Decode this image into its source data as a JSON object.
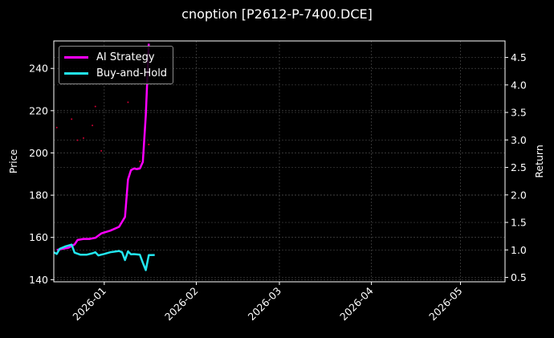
{
  "chart_data": {
    "type": "line",
    "title": "cnoption [P2612-P-7400.DCE]",
    "left_axis": {
      "label": "Price",
      "ylim": [
        139,
        253
      ],
      "ticks": [
        140,
        160,
        180,
        200,
        220,
        240
      ]
    },
    "right_axis": {
      "label": "Return",
      "ylim": [
        0.42,
        4.8
      ],
      "ticks": [
        0.5,
        1.0,
        1.5,
        2.0,
        2.5,
        3.0,
        3.5,
        4.0,
        4.5
      ]
    },
    "x_axis": {
      "type": "date",
      "range": [
        "2025-12-15",
        "2026-05-16"
      ],
      "ticks": [
        "2026-01",
        "2026-02",
        "2026-03",
        "2026-04",
        "2026-05"
      ]
    },
    "grid": true,
    "legend_position": "top-left",
    "series": [
      {
        "name": "AI Strategy",
        "color": "#ff00ff",
        "axis": "right",
        "points": [
          [
            "2025-12-16",
            1.0
          ],
          [
            "2025-12-18",
            1.02
          ],
          [
            "2025-12-20",
            1.04
          ],
          [
            "2025-12-22",
            1.1
          ],
          [
            "2025-12-23",
            1.18
          ],
          [
            "2025-12-25",
            1.2
          ],
          [
            "2025-12-27",
            1.2
          ],
          [
            "2025-12-29",
            1.22
          ],
          [
            "2025-12-31",
            1.3
          ],
          [
            "2026-01-03",
            1.35
          ],
          [
            "2026-01-06",
            1.42
          ],
          [
            "2026-01-08",
            1.6
          ],
          [
            "2026-01-09",
            2.28
          ],
          [
            "2026-01-10",
            2.45
          ],
          [
            "2026-01-11",
            2.48
          ],
          [
            "2026-01-12",
            2.47
          ],
          [
            "2026-01-13",
            2.48
          ],
          [
            "2026-01-14",
            2.6
          ],
          [
            "2026-01-15",
            3.45
          ],
          [
            "2026-01-16",
            4.75
          ]
        ]
      },
      {
        "name": "Buy-and-Hold",
        "color": "#22e6f0",
        "axis": "left",
        "points": [
          [
            "2025-12-15",
            153.0
          ],
          [
            "2025-12-16",
            152.2
          ],
          [
            "2025-12-17",
            154.6
          ],
          [
            "2025-12-19",
            155.8
          ],
          [
            "2025-12-21",
            156.6
          ],
          [
            "2025-12-22",
            152.8
          ],
          [
            "2025-12-24",
            151.8
          ],
          [
            "2025-12-26",
            151.8
          ],
          [
            "2025-12-28",
            152.5
          ],
          [
            "2025-12-29",
            153.0
          ],
          [
            "2025-12-30",
            151.5
          ],
          [
            "2026-01-01",
            152.2
          ],
          [
            "2026-01-03",
            153.0
          ],
          [
            "2026-01-06",
            153.6
          ],
          [
            "2026-01-07",
            153.0
          ],
          [
            "2026-01-08",
            149.3
          ],
          [
            "2026-01-09",
            153.4
          ],
          [
            "2026-01-10",
            152.0
          ],
          [
            "2026-01-11",
            152.1
          ],
          [
            "2026-01-13",
            151.8
          ],
          [
            "2026-01-14",
            148.0
          ],
          [
            "2026-01-15",
            144.5
          ],
          [
            "2026-01-16",
            151.6
          ],
          [
            "2026-01-18",
            151.7
          ]
        ]
      }
    ],
    "scatter_points": {
      "color": "#cc0033",
      "axis": "left",
      "points": [
        [
          "2025-12-16",
          212.0
        ],
        [
          "2025-12-21",
          216.0
        ],
        [
          "2025-12-23",
          206.0
        ],
        [
          "2025-12-25",
          207.0
        ],
        [
          "2025-12-28",
          213.0
        ],
        [
          "2025-12-29",
          222.0
        ],
        [
          "2025-12-31",
          201.0
        ],
        [
          "2026-01-09",
          224.0
        ],
        [
          "2026-01-13",
          196.0
        ],
        [
          "2026-01-16",
          204.0
        ]
      ]
    }
  }
}
